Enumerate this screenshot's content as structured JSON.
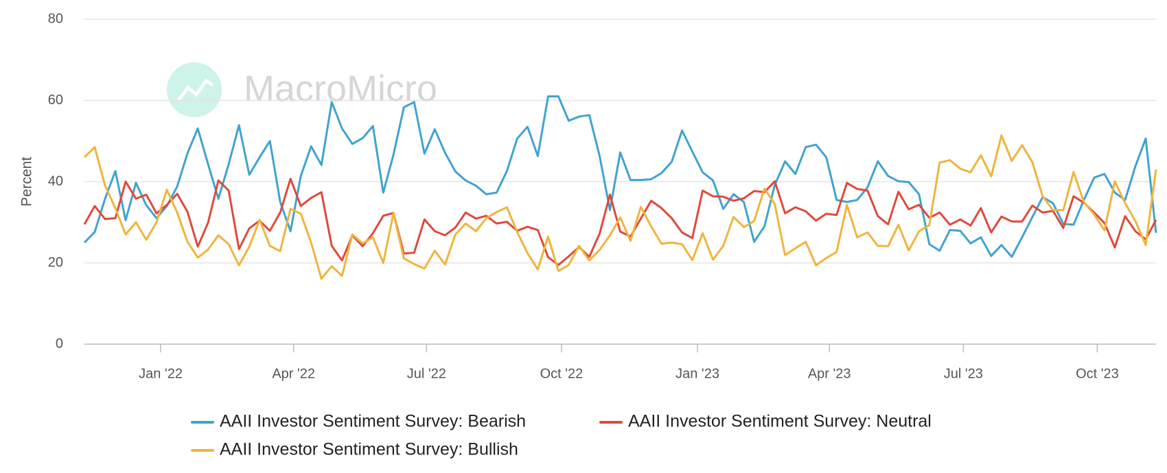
{
  "chart_data": {
    "type": "line",
    "watermark": "MacroMicro",
    "ylabel": "Percent",
    "ylim": [
      0,
      80
    ],
    "yticks": [
      0,
      20,
      40,
      60,
      80
    ],
    "grid": true,
    "xlim": [
      0,
      104
    ],
    "xticks": [
      {
        "value": 7.4,
        "label": "Jan '22"
      },
      {
        "value": 20.3,
        "label": "Apr '22"
      },
      {
        "value": 33.2,
        "label": "Jul '22"
      },
      {
        "value": 46.3,
        "label": "Oct '22"
      },
      {
        "value": 59.5,
        "label": "Jan '23"
      },
      {
        "value": 72.3,
        "label": "Apr '23"
      },
      {
        "value": 85.3,
        "label": "Jul '23"
      },
      {
        "value": 98.3,
        "label": "Oct '23"
      }
    ],
    "series": [
      {
        "name": "AAII Investor Sentiment Survey: Bearish",
        "color": "#3fa3d0",
        "values": [
          25,
          27.6,
          35.8,
          42.6,
          30.5,
          39.7,
          34.2,
          31,
          34,
          38.8,
          47,
          53.1,
          44.3,
          35.8,
          44.3,
          53.9,
          41.7,
          46,
          50,
          35,
          27.8,
          41.4,
          48.7,
          44.1,
          59.6,
          53.1,
          49.3,
          50.7,
          53.7,
          37.3,
          46.7,
          58.3,
          59.6,
          46.9,
          52.9,
          47.1,
          42.5,
          40.3,
          39,
          36.9,
          37.3,
          42.6,
          50.6,
          53.5,
          46.3,
          61,
          61,
          55,
          56,
          56.4,
          46.3,
          33,
          47.2,
          40.4,
          40.4,
          40.6,
          42.1,
          44.9,
          52.6,
          47.4,
          42.3,
          40.3,
          33.3,
          36.9,
          35,
          25.2,
          29,
          39.2,
          45,
          41.9,
          48.5,
          49.1,
          46,
          35.5,
          35,
          35.5,
          38.6,
          45,
          41.4,
          40.1,
          39.9,
          36.9,
          24.6,
          23,
          28.1,
          27.9,
          24.8,
          26.3,
          21.7,
          24.4,
          21.5,
          26.3,
          31.3,
          36.2,
          34.7,
          29.6,
          29.4,
          35.5,
          41,
          41.9,
          37.3,
          35.5,
          43.8,
          50.6,
          27.4
        ]
      },
      {
        "name": "AAII Investor Sentiment Survey: Neutral",
        "color": "#e0493a",
        "values": [
          29.5,
          34,
          30.8,
          31,
          40,
          35.8,
          36.8,
          32.2,
          34.3,
          37,
          32.6,
          24,
          29.9,
          40.3,
          37.8,
          23.4,
          28.5,
          30.4,
          27.9,
          32.4,
          40.7,
          34,
          36,
          37.4,
          24.2,
          20.6,
          26.8,
          24.1,
          27.3,
          31.6,
          32.3,
          22.3,
          22.5,
          30.7,
          27.8,
          26.8,
          28.7,
          32.4,
          30.9,
          31.6,
          29.7,
          30.1,
          27.9,
          28.9,
          28.1,
          21.4,
          19.5,
          21.6,
          23.9,
          21.5,
          27.2,
          36.8,
          27.7,
          26.5,
          30.9,
          35.3,
          33.5,
          31,
          27.5,
          26.1,
          37.8,
          36.4,
          36.3,
          35.3,
          35.9,
          37.7,
          37.4,
          40.1,
          32.2,
          33.7,
          32.7,
          30.4,
          32.1,
          31.8,
          39.7,
          38.2,
          37.8,
          31.5,
          29.5,
          37.5,
          33.2,
          34.3,
          31.1,
          32.4,
          29.4,
          30.7,
          29.2,
          33.5,
          27.5,
          31.4,
          30.2,
          30.2,
          34.1,
          32.4,
          32.8,
          28.6,
          36.4,
          34.8,
          32.4,
          29.8,
          23.8,
          31.5,
          27.8,
          25.8,
          30.6
        ]
      },
      {
        "name": "AAII Investor Sentiment Survey: Bullish",
        "color": "#f0b43c",
        "values": [
          46,
          48.5,
          39,
          33.5,
          27,
          30,
          25.7,
          30,
          38,
          32.4,
          25.2,
          21.3,
          23.3,
          26.8,
          24.6,
          19.4,
          24,
          30.6,
          24.2,
          22.9,
          33.3,
          32.1,
          25,
          16.1,
          19.2,
          16.8,
          27,
          24.8,
          26.3,
          20,
          32.3,
          21.1,
          19.7,
          18.6,
          23,
          19.6,
          27,
          29.7,
          27.8,
          31,
          32.5,
          33.7,
          27.6,
          22.4,
          18.4,
          26.5,
          18,
          19.5,
          24.2,
          20.6,
          23.2,
          26.8,
          31.2,
          25.4,
          33.8,
          29,
          24.7,
          25,
          24.6,
          20.7,
          27.3,
          20.8,
          24.2,
          31.3,
          28.8,
          30.3,
          38.3,
          34.5,
          21.9,
          23.6,
          25.2,
          19.4,
          21.2,
          22.7,
          34.3,
          26.3,
          27.5,
          24.2,
          24.1,
          29.4,
          23.1,
          27.8,
          29.3,
          44.7,
          45.3,
          43.2,
          42.3,
          46.5,
          41.3,
          51.4,
          45.1,
          49,
          44.8,
          36.4,
          33,
          33,
          42.4,
          35,
          31.9,
          28,
          40.1,
          34.7,
          30.3,
          24.4,
          43
        ]
      }
    ]
  }
}
